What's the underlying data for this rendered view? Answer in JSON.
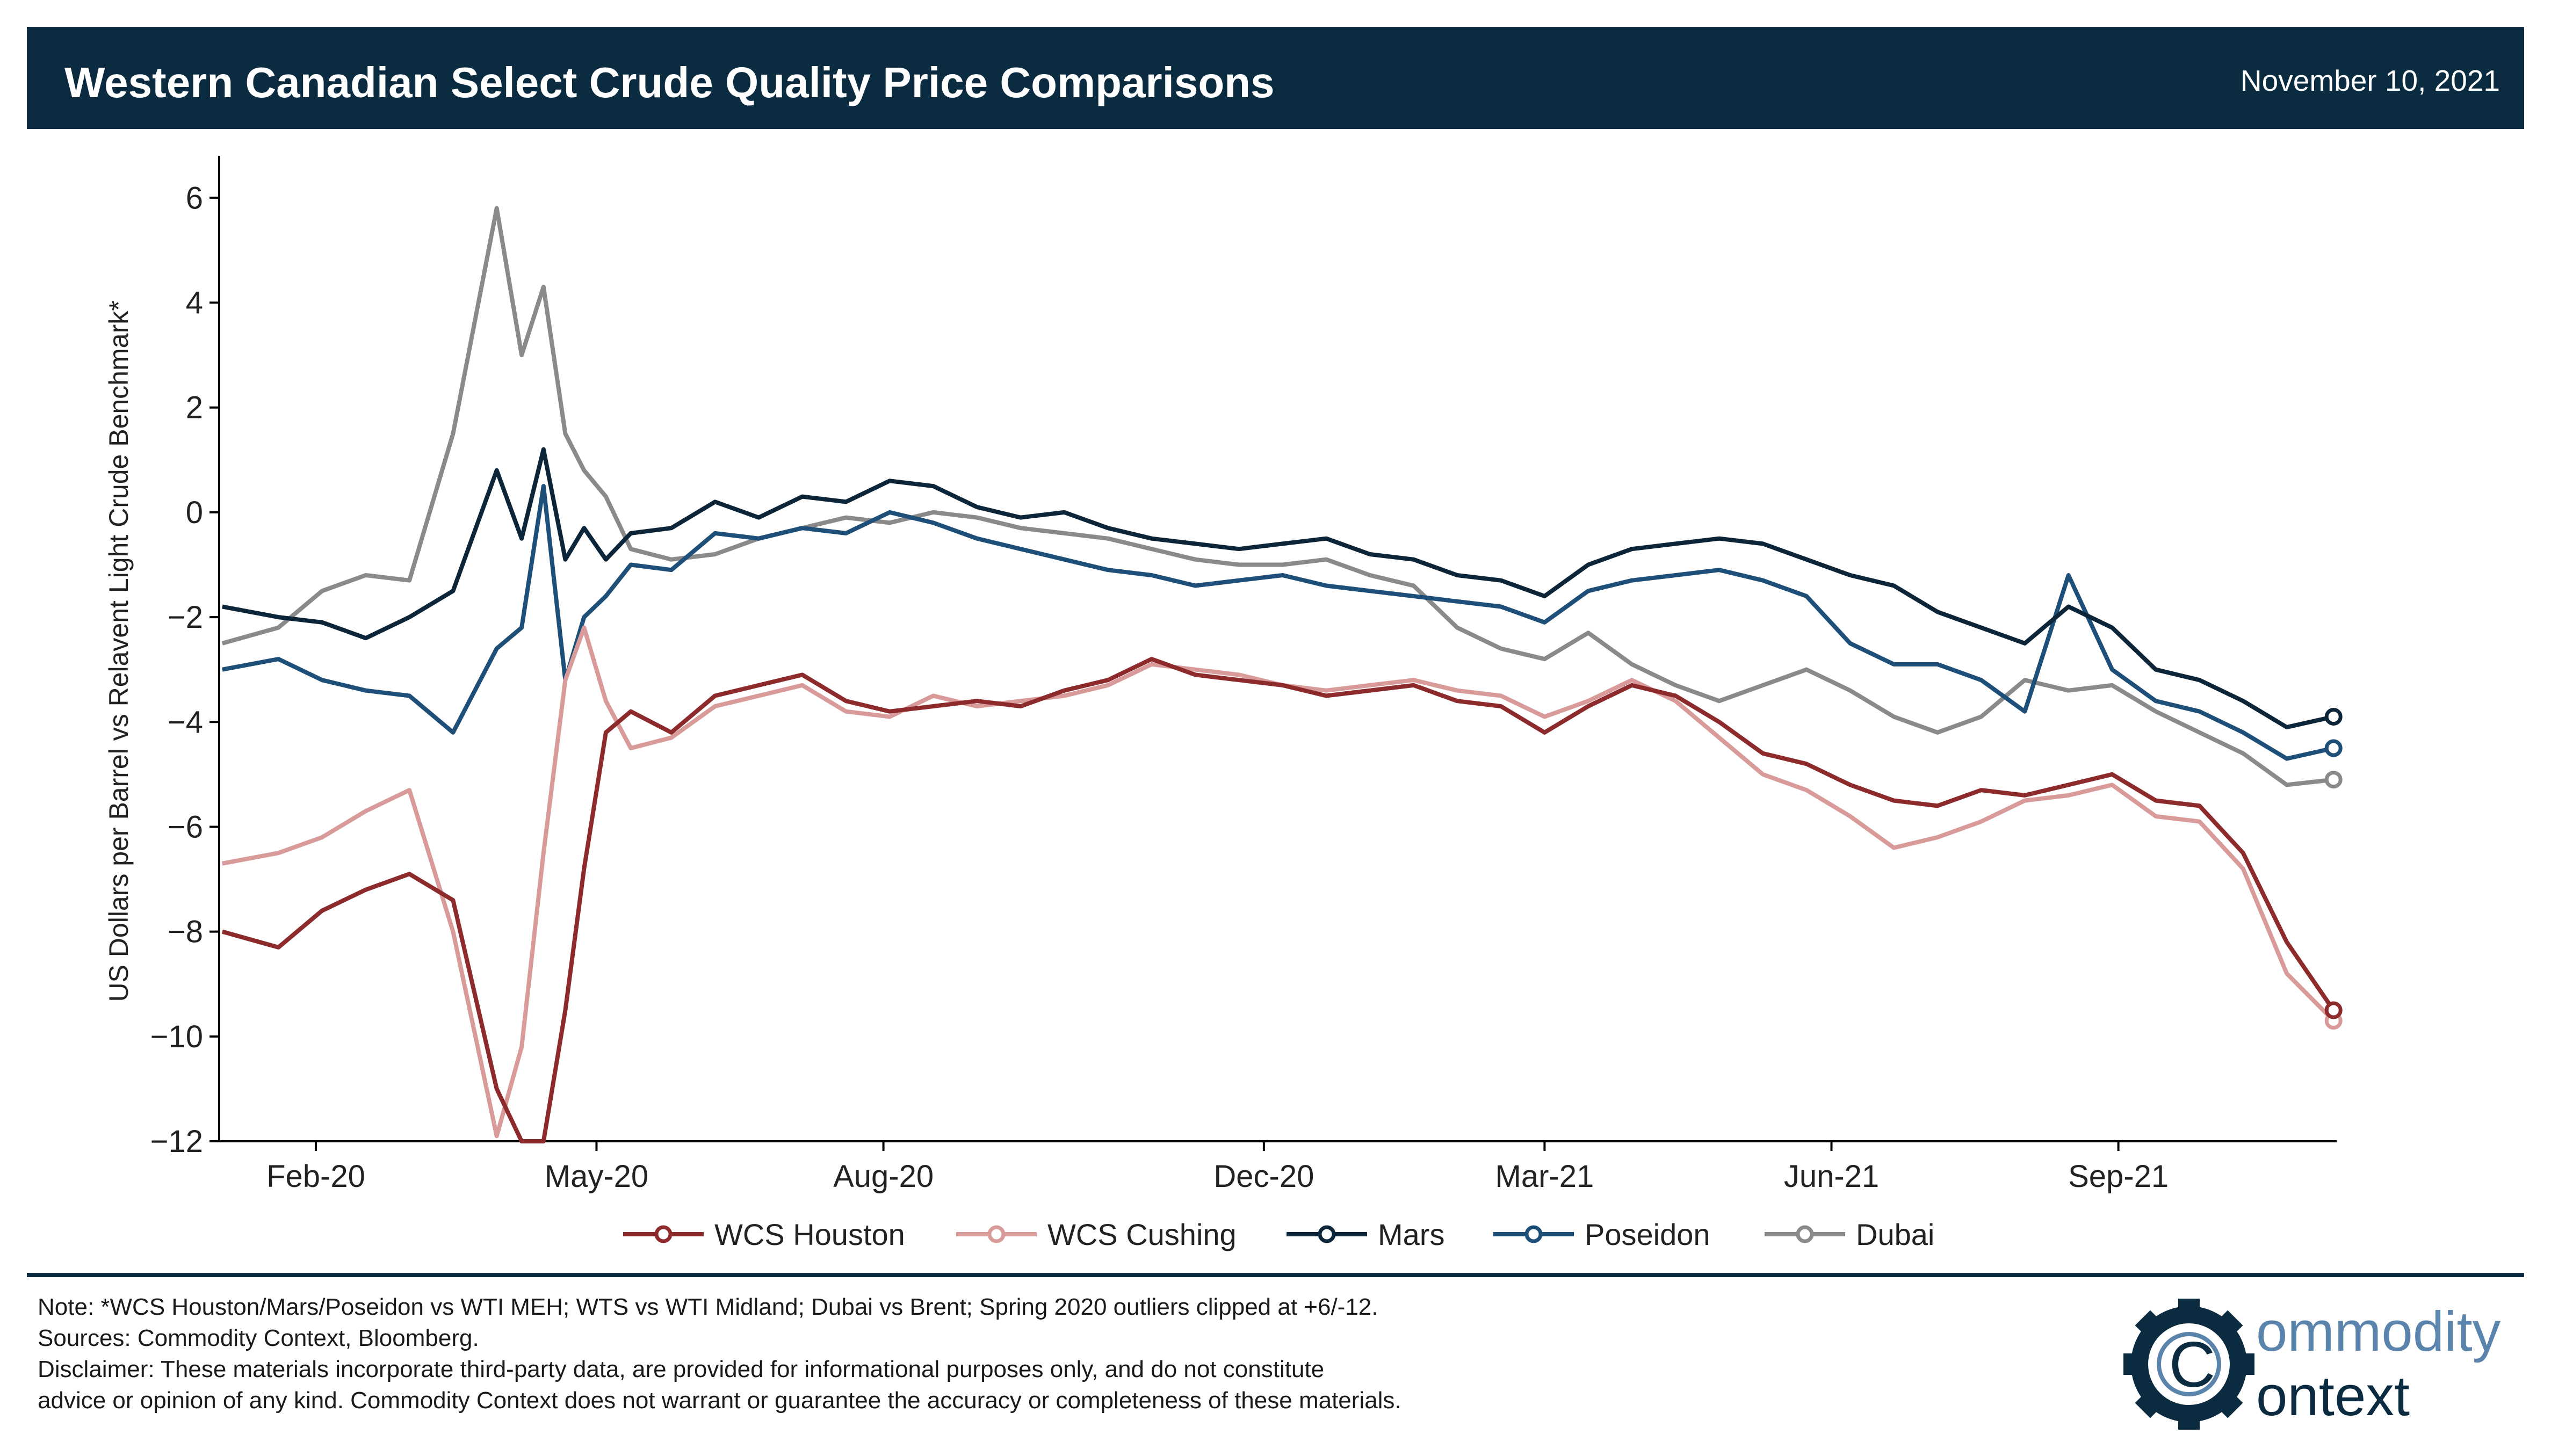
{
  "header": {
    "title": "Western Canadian Select Crude Quality Price Comparisons",
    "date": "November 10, 2021"
  },
  "colors": {
    "header_bg": "#0a2b40",
    "wcs_houston": "#8c2a2c",
    "wcs_cushing": "#d99a9a",
    "mars": "#0d2538",
    "poseidon": "#1d4f78",
    "dubai": "#8a8a8a"
  },
  "chart_data": {
    "type": "line",
    "title": "Western Canadian Select Crude Quality Price Comparisons",
    "ylabel": "US Dollars per Barrel vs Relavent Light Crude Benchmark*",
    "xlabel": "",
    "ylim": [
      -12,
      6.7
    ],
    "xlim": [
      "2020-01-01",
      "2021-11-10"
    ],
    "yticks": [
      6,
      4,
      2,
      0,
      -2,
      -4,
      -6,
      -8,
      -10,
      -12
    ],
    "ytick_labels": [
      "6",
      "4",
      "2",
      "0",
      "−2",
      "−4",
      "−6",
      "−8",
      "−10",
      "−12"
    ],
    "xticks": [
      {
        "date": "2020-02-01",
        "label": "Feb-20"
      },
      {
        "date": "2020-05-01",
        "label": "May-20"
      },
      {
        "date": "2020-08-01",
        "label": "Aug-20"
      },
      {
        "date": "2020-12-01",
        "label": "Dec-20"
      },
      {
        "date": "2021-03-01",
        "label": "Mar-21"
      },
      {
        "date": "2021-06-01",
        "label": "Jun-21"
      },
      {
        "date": "2021-09-01",
        "label": "Sep-21"
      }
    ],
    "grid": false,
    "legend_position": "bottom-center",
    "x": [
      "2020-01-02",
      "2020-01-20",
      "2020-02-03",
      "2020-02-17",
      "2020-03-02",
      "2020-03-16",
      "2020-03-30",
      "2020-04-07",
      "2020-04-14",
      "2020-04-21",
      "2020-04-27",
      "2020-05-04",
      "2020-05-12",
      "2020-05-25",
      "2020-06-08",
      "2020-06-22",
      "2020-07-06",
      "2020-07-20",
      "2020-08-03",
      "2020-08-17",
      "2020-08-31",
      "2020-09-14",
      "2020-09-28",
      "2020-10-12",
      "2020-10-26",
      "2020-11-09",
      "2020-11-23",
      "2020-12-07",
      "2020-12-21",
      "2021-01-04",
      "2021-01-18",
      "2021-02-01",
      "2021-02-15",
      "2021-03-01",
      "2021-03-15",
      "2021-03-29",
      "2021-04-12",
      "2021-04-26",
      "2021-05-10",
      "2021-05-24",
      "2021-06-07",
      "2021-06-21",
      "2021-07-05",
      "2021-07-19",
      "2021-08-02",
      "2021-08-16",
      "2021-08-30",
      "2021-09-13",
      "2021-09-27",
      "2021-10-11",
      "2021-10-25",
      "2021-11-09"
    ],
    "series": [
      {
        "name": "WCS Houston",
        "values": [
          -8.0,
          -8.3,
          -7.6,
          -7.2,
          -6.9,
          -7.4,
          -11.0,
          -12.0,
          -12.0,
          -9.5,
          -6.8,
          -4.2,
          -3.8,
          -4.2,
          -3.5,
          -3.3,
          -3.1,
          -3.6,
          -3.8,
          -3.7,
          -3.6,
          -3.7,
          -3.4,
          -3.2,
          -2.8,
          -3.1,
          -3.2,
          -3.3,
          -3.5,
          -3.4,
          -3.3,
          -3.6,
          -3.7,
          -4.2,
          -3.7,
          -3.3,
          -3.5,
          -4.0,
          -4.6,
          -4.8,
          -5.2,
          -5.5,
          -5.6,
          -5.3,
          -5.4,
          -5.2,
          -5.0,
          -5.5,
          -5.6,
          -6.5,
          -8.2,
          -9.5
        ]
      },
      {
        "name": "WCS Cushing",
        "values": [
          -6.7,
          -6.5,
          -6.2,
          -5.7,
          -5.3,
          -8.0,
          -11.9,
          -10.2,
          -6.5,
          -3.2,
          -2.2,
          -3.6,
          -4.5,
          -4.3,
          -3.7,
          -3.5,
          -3.3,
          -3.8,
          -3.9,
          -3.5,
          -3.7,
          -3.6,
          -3.5,
          -3.3,
          -2.9,
          -3.0,
          -3.1,
          -3.3,
          -3.4,
          -3.3,
          -3.2,
          -3.4,
          -3.5,
          -3.9,
          -3.6,
          -3.2,
          -3.6,
          -4.3,
          -5.0,
          -5.3,
          -5.8,
          -6.4,
          -6.2,
          -5.9,
          -5.5,
          -5.4,
          -5.2,
          -5.8,
          -5.9,
          -6.8,
          -8.8,
          -9.7
        ]
      },
      {
        "name": "Mars",
        "values": [
          -1.8,
          -2.0,
          -2.1,
          -2.4,
          -2.0,
          -1.5,
          0.8,
          -0.5,
          1.2,
          -0.9,
          -0.3,
          -0.9,
          -0.4,
          -0.3,
          0.2,
          -0.1,
          0.3,
          0.2,
          0.6,
          0.5,
          0.1,
          -0.1,
          0.0,
          -0.3,
          -0.5,
          -0.6,
          -0.7,
          -0.6,
          -0.5,
          -0.8,
          -0.9,
          -1.2,
          -1.3,
          -1.6,
          -1.0,
          -0.7,
          -0.6,
          -0.5,
          -0.6,
          -0.9,
          -1.2,
          -1.4,
          -1.9,
          -2.2,
          -2.5,
          -1.8,
          -2.2,
          -3.0,
          -3.2,
          -3.6,
          -4.1,
          -3.9
        ]
      },
      {
        "name": "Poseidon",
        "values": [
          -3.0,
          -2.8,
          -3.2,
          -3.4,
          -3.5,
          -4.2,
          -2.6,
          -2.2,
          0.5,
          -3.2,
          -2.0,
          -1.6,
          -1.0,
          -1.1,
          -0.4,
          -0.5,
          -0.3,
          -0.4,
          0.0,
          -0.2,
          -0.5,
          -0.7,
          -0.9,
          -1.1,
          -1.2,
          -1.4,
          -1.3,
          -1.2,
          -1.4,
          -1.5,
          -1.6,
          -1.7,
          -1.8,
          -2.1,
          -1.5,
          -1.3,
          -1.2,
          -1.1,
          -1.3,
          -1.6,
          -2.5,
          -2.9,
          -2.9,
          -3.2,
          -3.8,
          -1.2,
          -3.0,
          -3.6,
          -3.8,
          -4.2,
          -4.7,
          -4.5
        ]
      },
      {
        "name": "Dubai",
        "values": [
          -2.5,
          -2.2,
          -1.5,
          -1.2,
          -1.3,
          1.5,
          5.8,
          3.0,
          4.3,
          1.5,
          0.8,
          0.3,
          -0.7,
          -0.9,
          -0.8,
          -0.5,
          -0.3,
          -0.1,
          -0.2,
          0.0,
          -0.1,
          -0.3,
          -0.4,
          -0.5,
          -0.7,
          -0.9,
          -1.0,
          -1.0,
          -0.9,
          -1.2,
          -1.4,
          -2.2,
          -2.6,
          -2.8,
          -2.3,
          -2.9,
          -3.3,
          -3.6,
          -3.3,
          -3.0,
          -3.4,
          -3.9,
          -4.2,
          -3.9,
          -3.2,
          -3.4,
          -3.3,
          -3.8,
          -4.2,
          -4.6,
          -5.2,
          -5.1
        ]
      }
    ]
  },
  "notes": {
    "note": "Note: *WCS Houston/Mars/Poseidon vs WTI MEH; WTS vs WTI Midland; Dubai vs Brent; Spring 2020 outliers clipped at +6/-12.",
    "sources": "Sources: Commodity Context, Bloomberg.",
    "disclaimer_1": "Disclaimer: These materials incorporate third-party data, are provided for informational purposes only, and do not constitute",
    "disclaimer_2": "advice or opinion of any kind. Commodity Context does not warrant or guarantee the accuracy or completeness of these materials."
  },
  "logo": {
    "line1": "ommodity",
    "line2": "ontext",
    "letter": "C"
  }
}
